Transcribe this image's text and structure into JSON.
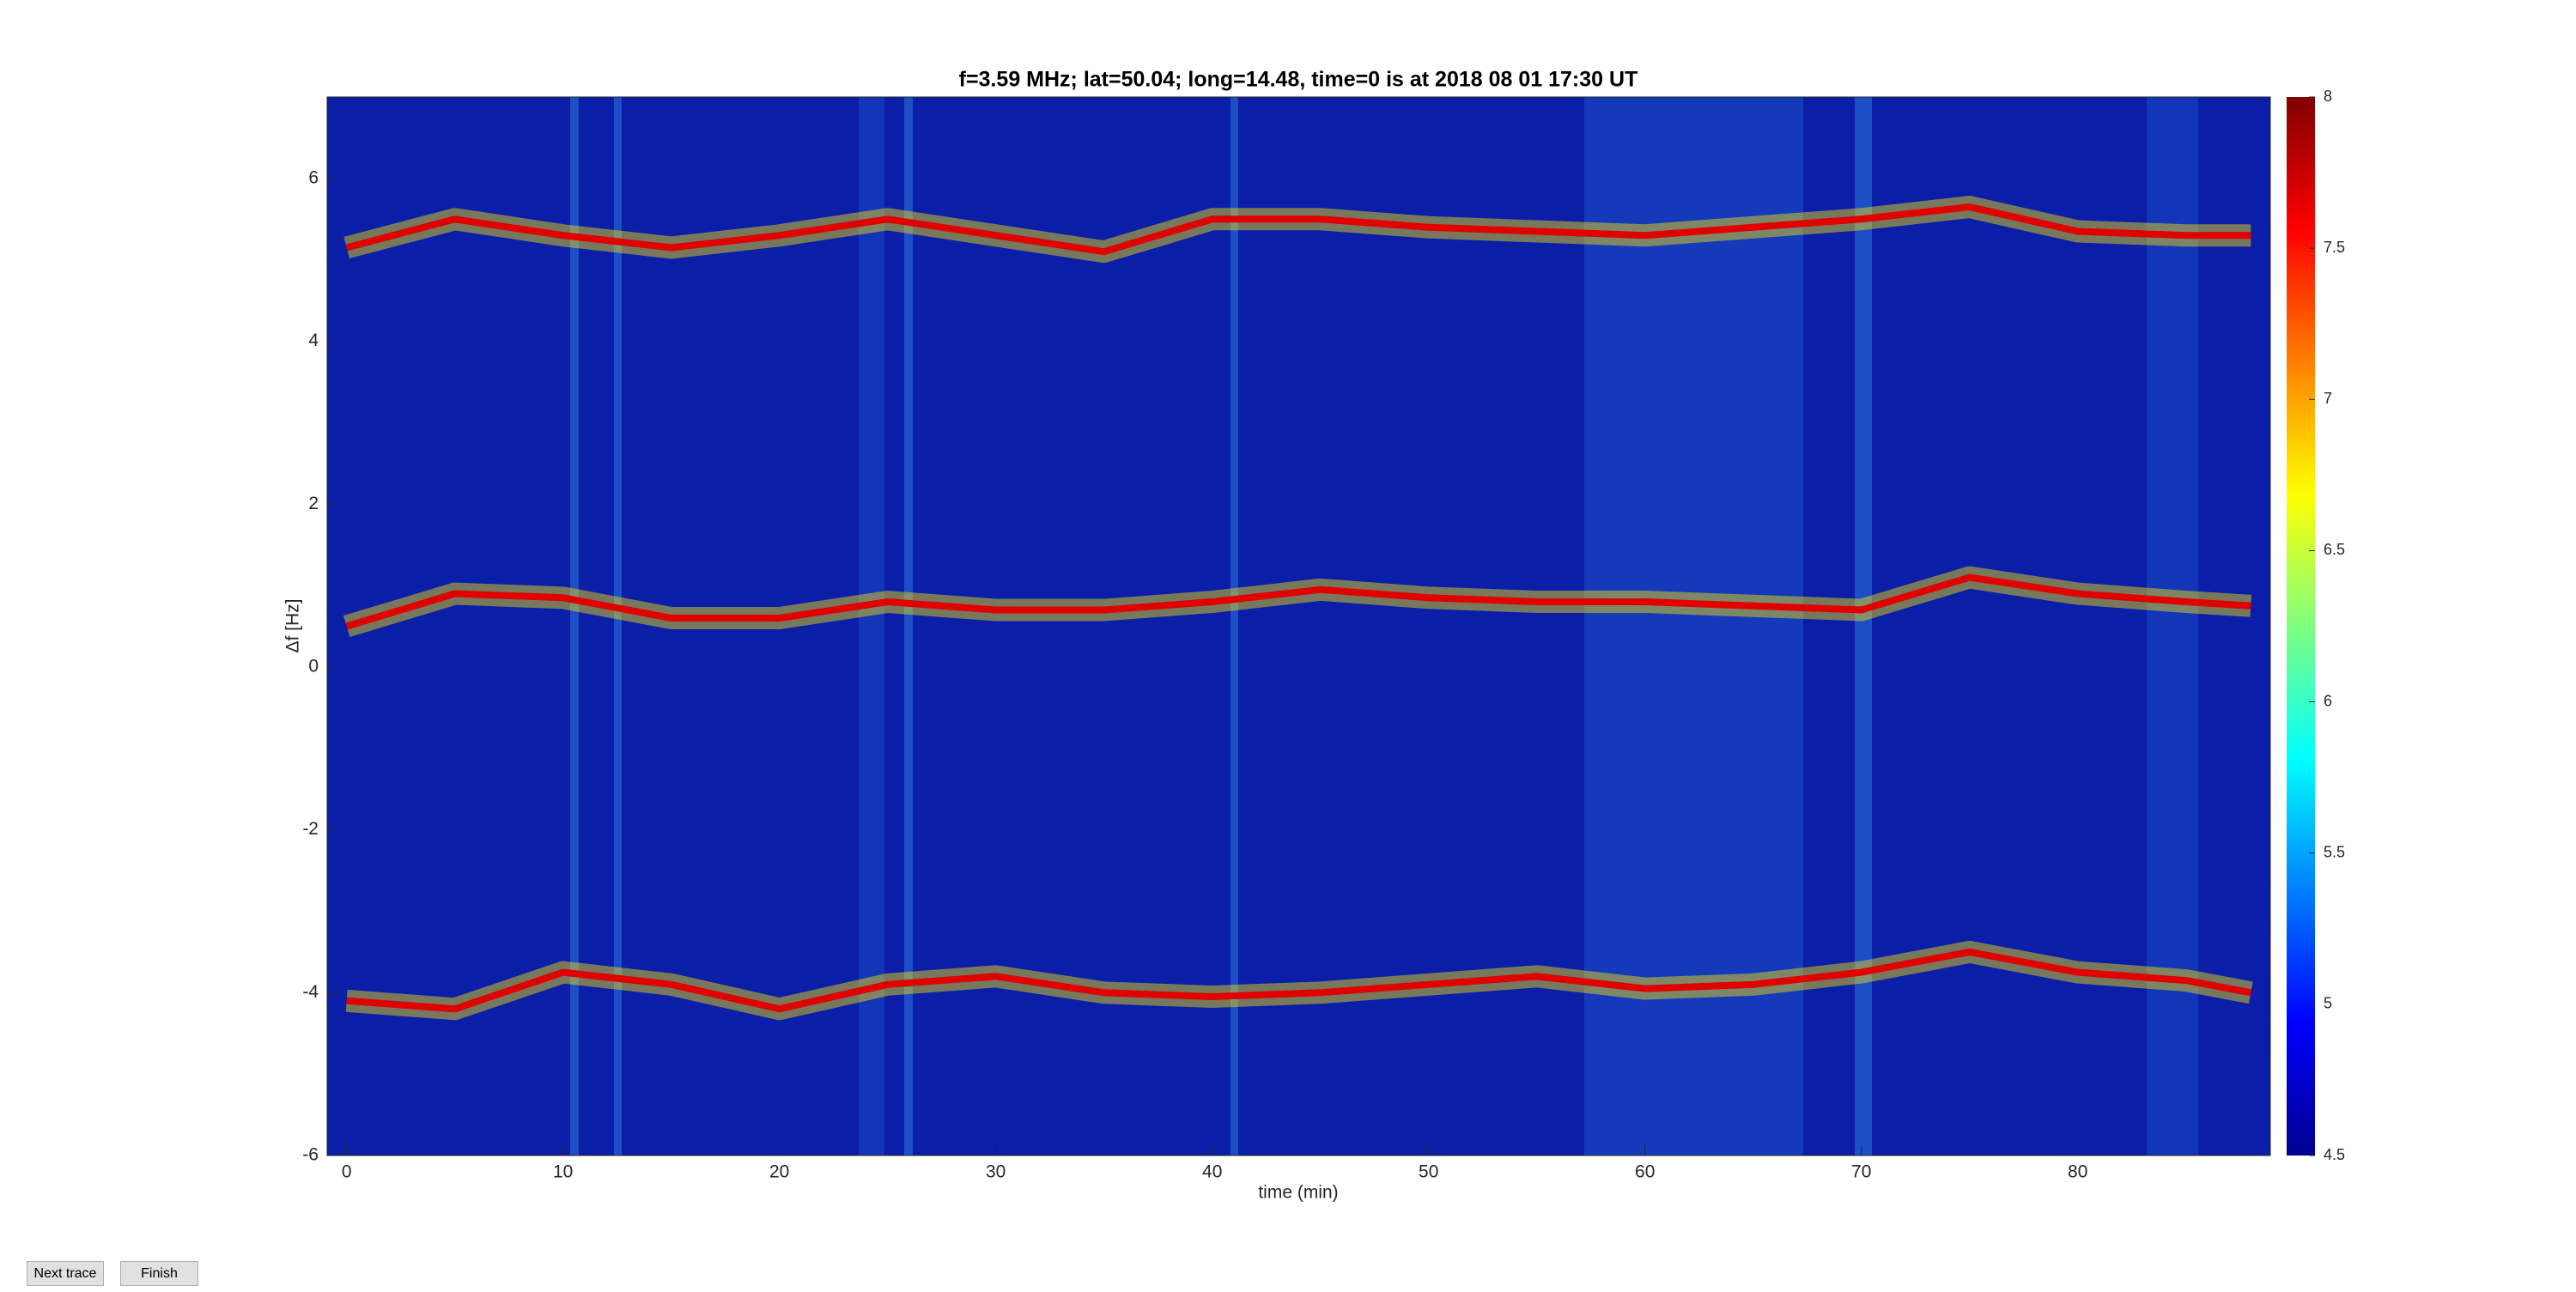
{
  "chart_data": {
    "type": "line",
    "title": "f=3.59 MHz;  lat=50.04; long=14.48, time=0 is at 2018 08 01 17:30 UT",
    "x_label": "time (min)",
    "y_label": "Δf [Hz]",
    "x": [
      0,
      5,
      10,
      15,
      20,
      25,
      30,
      35,
      40,
      45,
      50,
      55,
      60,
      65,
      70,
      75,
      80,
      85,
      88
    ],
    "series": [
      {
        "color": "#e00000",
        "values": [
          5.15,
          5.5,
          5.3,
          5.15,
          5.3,
          5.5,
          5.3,
          5.1,
          5.5,
          5.5,
          5.4,
          5.35,
          5.3,
          5.4,
          5.5,
          5.65,
          5.35,
          5.3,
          5.3
        ]
      },
      {
        "color": "#e00000",
        "values": [
          0.5,
          0.9,
          0.85,
          0.6,
          0.6,
          0.8,
          0.7,
          0.7,
          0.8,
          0.95,
          0.85,
          0.8,
          0.8,
          0.75,
          0.7,
          1.1,
          0.9,
          0.8,
          0.75
        ]
      },
      {
        "color": "#e00000",
        "values": [
          -4.1,
          -4.2,
          -3.75,
          -3.9,
          -4.2,
          -3.9,
          -3.8,
          -4.0,
          -4.05,
          -4.0,
          -3.9,
          -3.8,
          -3.95,
          -3.9,
          -3.75,
          -3.5,
          -3.75,
          -3.85,
          -4.0
        ]
      }
    ],
    "xlim": [
      -0.9,
      88.9
    ],
    "xticks": [
      0,
      10,
      20,
      30,
      40,
      50,
      60,
      70,
      80
    ],
    "ylim": [
      -6,
      7
    ],
    "yticks": [
      -6,
      -4,
      -2,
      0,
      2,
      4,
      6
    ],
    "colorbar": {
      "lim": [
        4.5,
        8
      ],
      "ticks": [
        4.5,
        5,
        5.5,
        6,
        6.5,
        7,
        7.5,
        8
      ]
    },
    "buttons": [
      "Next trace",
      "Finish"
    ]
  }
}
